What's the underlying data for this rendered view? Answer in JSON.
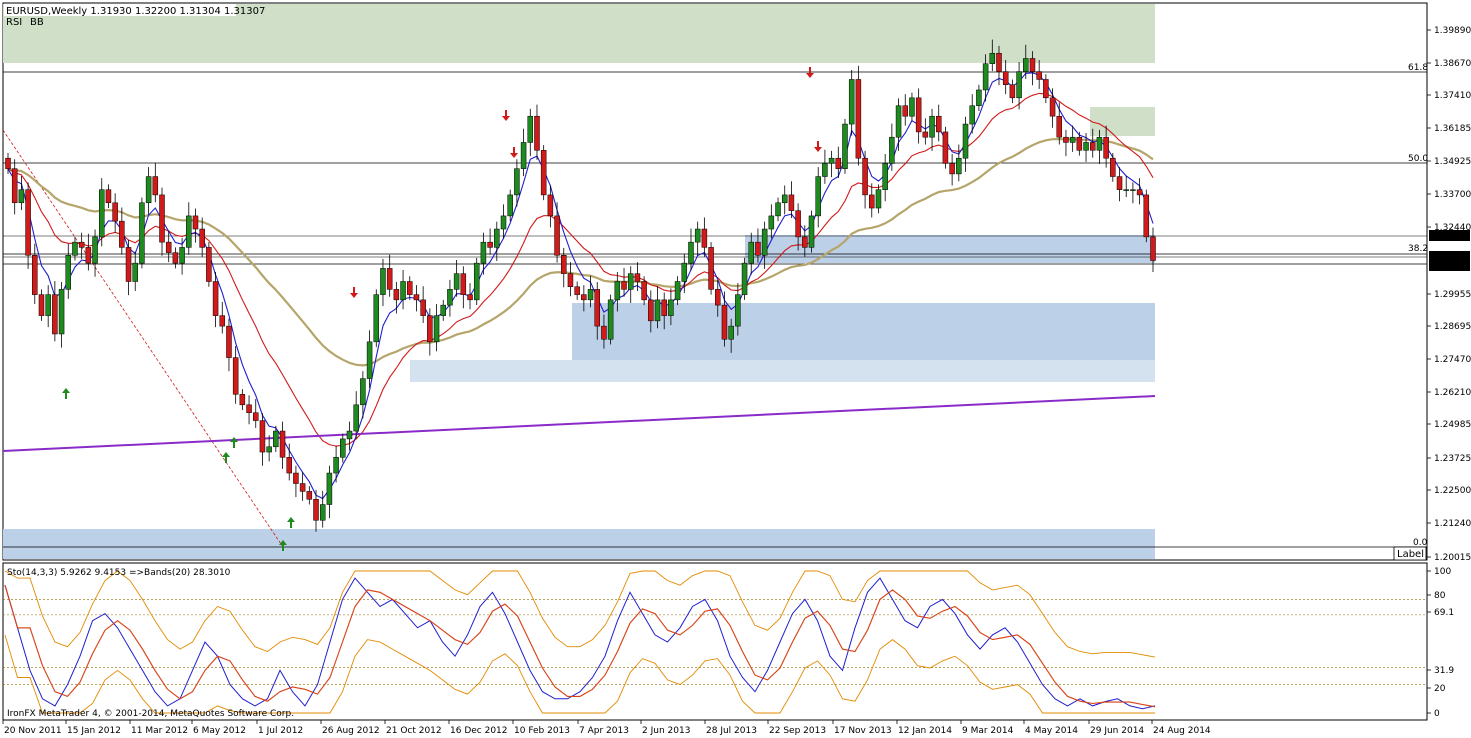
{
  "header": {
    "symbol": "EURUSD,Weekly",
    "ohlc": "1.31930 1.32200 1.31304 1.31307",
    "ind1": "RSI",
    "ind2": "BB",
    "ind1_color": "#d4a017",
    "ind2_color": "#2e8b57"
  },
  "colors": {
    "bull": "#1f8a1f",
    "bear": "#d11a1a",
    "ma_fast": "#1f1fcf",
    "ma_mid": "#d11a1a",
    "ma_slow": "#b5a56a",
    "ma_long": "#8a2bc8",
    "supply_zone": "#cfdfc8",
    "demand_zone": "#bcd0e8",
    "demand_zone_light": "#d4e2f0"
  },
  "fib_labels": [
    "61.8",
    "50.0",
    "38.2",
    "0.0"
  ],
  "zone_label": "Label",
  "price_badges": [
    "1.32141",
    "1.31307",
    "1.31050"
  ],
  "lower_header": "Sto(14,3,3) 5.9262 9.4153  =>Bands(20) 28.3010",
  "copyright": "IronFX MetaTrader 4, © 2001-2014, MetaQuotes Software Corp.",
  "chart_data": {
    "type": "candlestick",
    "title": "EURUSD,Weekly",
    "ylim": [
      1.2,
      1.41
    ],
    "y_ticks": [
      "1.39890",
      "1.38670",
      "1.37410",
      "1.36185",
      "1.34925",
      "1.33700",
      "1.32440",
      "1.29955",
      "1.28695",
      "1.27470",
      "1.26210",
      "1.24985",
      "1.23725",
      "1.22500",
      "1.21240",
      "1.20015"
    ],
    "x_ticks": [
      "20 Nov 2011",
      "15 Jan 2012",
      "11 Mar 2012",
      "6 May 2012",
      "1 Jul 2012",
      "26 Aug 2012",
      "21 Oct 2012",
      "16 Dec 2012",
      "10 Feb 2013",
      "7 Apr 2013",
      "2 Jun 2013",
      "28 Jul 2013",
      "22 Sep 2013",
      "17 Nov 2013",
      "12 Jan 2014",
      "9 Mar 2014",
      "4 May 2014",
      "29 Jun 2014",
      "24 Aug 2014"
    ],
    "close_path": [
      1.348,
      1.335,
      1.34,
      1.315,
      1.3,
      1.292,
      1.3,
      1.285,
      1.302,
      1.315,
      1.32,
      1.318,
      1.312,
      1.322,
      1.34,
      1.335,
      1.328,
      1.318,
      1.305,
      1.312,
      1.335,
      1.345,
      1.338,
      1.32,
      1.316,
      1.312,
      1.318,
      1.33,
      1.325,
      1.318,
      1.305,
      1.292,
      1.288,
      1.276,
      1.262,
      1.258,
      1.255,
      1.252,
      1.24,
      1.242,
      1.248,
      1.238,
      1.232,
      1.228,
      1.225,
      1.222,
      1.214,
      1.22,
      1.232,
      1.238,
      1.245,
      1.248,
      1.258,
      1.268,
      1.282,
      1.3,
      1.31,
      1.302,
      1.298,
      1.305,
      1.3,
      1.298,
      1.292,
      1.282,
      1.292,
      1.296,
      1.302,
      1.308,
      1.3,
      1.298,
      1.312,
      1.32,
      1.318,
      1.325,
      1.33,
      1.338,
      1.348,
      1.358,
      1.368,
      1.355,
      1.338,
      1.33,
      1.315,
      1.308,
      1.303,
      1.3,
      1.298,
      1.302,
      1.288,
      1.283,
      1.298,
      1.305,
      1.302,
      1.308,
      1.305,
      1.298,
      1.29,
      1.298,
      1.292,
      1.298,
      1.305,
      1.312,
      1.32,
      1.325,
      1.318,
      1.302,
      1.296,
      1.283,
      1.288,
      1.3,
      1.312,
      1.32,
      1.315,
      1.325,
      1.33,
      1.335,
      1.338,
      1.332,
      1.322,
      1.318,
      1.33,
      1.345,
      1.35,
      1.352,
      1.348,
      1.365,
      1.382,
      1.352,
      1.338,
      1.333,
      1.34,
      1.35,
      1.36,
      1.372,
      1.368,
      1.375,
      1.362,
      1.36,
      1.368,
      1.362,
      1.35,
      1.346,
      1.352,
      1.365,
      1.372,
      1.378,
      1.388,
      1.392,
      1.385,
      1.38,
      1.375,
      1.385,
      1.39,
      1.385,
      1.382,
      1.375,
      1.368,
      1.36,
      1.358,
      1.36,
      1.355,
      1.358,
      1.355,
      1.36,
      1.352,
      1.345,
      1.34,
      1.34,
      1.34,
      1.338,
      1.322,
      1.313
    ],
    "bbox_note": ""
  }
}
